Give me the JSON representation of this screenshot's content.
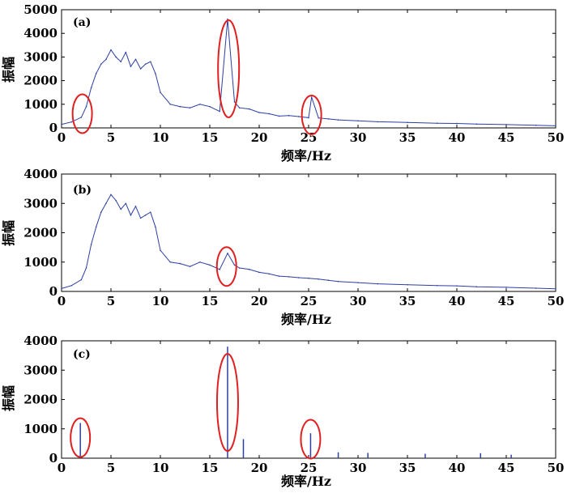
{
  "chart_data": [
    {
      "type": "line",
      "panel_label": "(a)",
      "xlabel": "频率/Hz",
      "ylabel": "振幅",
      "xlim": [
        0,
        50
      ],
      "ylim": [
        0,
        5000
      ],
      "xticks": [
        0,
        5,
        10,
        15,
        20,
        25,
        30,
        35,
        40,
        45,
        50
      ],
      "yticks": [
        0,
        1000,
        2000,
        3000,
        4000,
        5000
      ],
      "line_color": "#2c3fa3",
      "highlight_color": "#e02020",
      "series": [
        {
          "x": [
            0,
            1,
            2,
            2.5,
            3,
            3.5,
            4,
            4.5,
            5,
            5.5,
            6,
            6.5,
            7,
            7.5,
            8,
            8.5,
            9,
            9.5,
            10,
            11,
            12,
            13,
            14,
            15,
            16,
            16.8,
            17.5,
            18,
            19,
            20,
            21,
            22,
            23,
            24,
            25,
            25.3,
            26,
            27,
            28,
            30,
            32,
            35,
            38,
            40,
            42,
            45,
            48,
            50
          ],
          "y": [
            150,
            250,
            450,
            900,
            1700,
            2300,
            2700,
            2900,
            3300,
            3000,
            2800,
            3200,
            2600,
            2900,
            2500,
            2700,
            2800,
            2300,
            1500,
            1000,
            900,
            850,
            1000,
            900,
            700,
            4600,
            1100,
            850,
            800,
            650,
            600,
            500,
            520,
            480,
            430,
            1300,
            420,
            380,
            340,
            300,
            260,
            230,
            200,
            190,
            160,
            140,
            110,
            90
          ]
        }
      ],
      "highlights": [
        {
          "x": 2.1,
          "y": 600
        },
        {
          "x": 16.9,
          "y": 2500
        },
        {
          "x": 25.3,
          "y": 550
        }
      ]
    },
    {
      "type": "line",
      "panel_label": "(b)",
      "xlabel": "频率/Hz",
      "ylabel": "振幅",
      "xlim": [
        0,
        50
      ],
      "ylim": [
        0,
        4000
      ],
      "xticks": [
        0,
        5,
        10,
        15,
        20,
        25,
        30,
        35,
        40,
        45,
        50
      ],
      "yticks": [
        0,
        1000,
        2000,
        3000,
        4000
      ],
      "line_color": "#2c3fa3",
      "highlight_color": "#e02020",
      "series": [
        {
          "x": [
            0,
            1,
            2,
            2.5,
            3,
            3.5,
            4,
            4.5,
            5,
            5.5,
            6,
            6.5,
            7,
            7.5,
            8,
            8.5,
            9,
            9.5,
            10,
            11,
            12,
            13,
            14,
            15,
            16,
            16.8,
            17.5,
            18,
            19,
            20,
            21,
            22,
            23,
            24,
            25,
            26,
            27,
            28,
            30,
            32,
            35,
            38,
            40,
            42,
            45,
            48,
            50
          ],
          "y": [
            100,
            200,
            400,
            800,
            1600,
            2200,
            2700,
            3000,
            3300,
            3100,
            2800,
            3000,
            2600,
            2900,
            2500,
            2600,
            2700,
            2200,
            1400,
            1000,
            950,
            850,
            1000,
            900,
            750,
            1300,
            900,
            800,
            750,
            650,
            600,
            520,
            500,
            470,
            450,
            420,
            380,
            340,
            300,
            260,
            230,
            200,
            190,
            160,
            140,
            110,
            90
          ]
        }
      ],
      "highlights": [
        {
          "x": 16.7,
          "y": 850
        }
      ]
    },
    {
      "type": "bar",
      "panel_label": "(c)",
      "xlabel": "频率/Hz",
      "ylabel": "振幅",
      "xlim": [
        0,
        50
      ],
      "ylim": [
        0,
        4000
      ],
      "xticks": [
        0,
        5,
        10,
        15,
        20,
        25,
        30,
        35,
        40,
        45,
        50
      ],
      "yticks": [
        0,
        1000,
        2000,
        3000,
        4000
      ],
      "line_color": "#2c3fa3",
      "highlight_color": "#e02020",
      "series": [
        {
          "x": [
            1.9,
            16.8,
            18.4,
            25.2,
            28.0,
            31.0,
            36.8,
            42.4,
            45.5
          ],
          "y": [
            1200,
            3800,
            650,
            850,
            200,
            180,
            150,
            170,
            120
          ]
        }
      ],
      "highlights": [
        {
          "x": 1.9,
          "y": 700
        },
        {
          "x": 16.8,
          "y": 1900
        },
        {
          "x": 25.2,
          "y": 650
        }
      ]
    }
  ]
}
